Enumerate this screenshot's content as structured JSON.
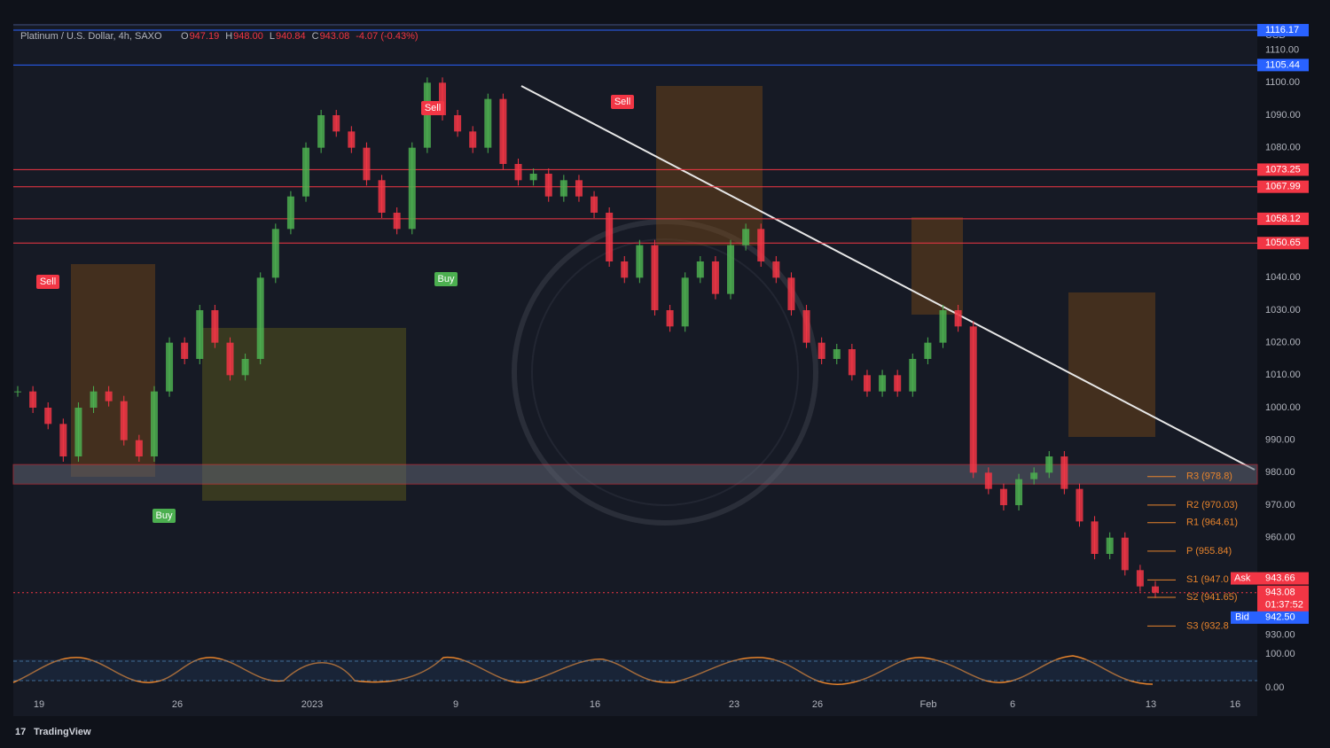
{
  "header": {
    "symbol": "Platinum / U.S. Dollar, 4h, SAXO",
    "ohlc": [
      {
        "key": "O",
        "value": "947.19"
      },
      {
        "key": "H",
        "value": "948.00"
      },
      {
        "key": "L",
        "value": "940.84"
      },
      {
        "key": "C",
        "value": "943.08"
      }
    ],
    "change": "-4.07 (-0.43%)"
  },
  "price_axis": {
    "currency": "USD",
    "ylim": [
      925,
      1120
    ],
    "ticks": [
      {
        "value": 1110,
        "label": "1110.00"
      },
      {
        "value": 1100,
        "label": "1100.00"
      },
      {
        "value": 1090,
        "label": "1090.00"
      },
      {
        "value": 1080,
        "label": "1080.00"
      },
      {
        "value": 1040,
        "label": "1040.00"
      },
      {
        "value": 1030,
        "label": "1030.00"
      },
      {
        "value": 1020,
        "label": "1020.00"
      },
      {
        "value": 1010,
        "label": "1010.00"
      },
      {
        "value": 1000,
        "label": "1000.00"
      },
      {
        "value": 990,
        "label": "990.00"
      },
      {
        "value": 980,
        "label": "980.00"
      },
      {
        "value": 970,
        "label": "970.00"
      },
      {
        "value": 960,
        "label": "960.00"
      },
      {
        "value": 930,
        "label": "930.00"
      }
    ]
  },
  "levels": [
    {
      "value": 1116.17,
      "label": "1116.17",
      "color": "#2962ff"
    },
    {
      "value": 1105.44,
      "label": "1105.44",
      "color": "#2962ff"
    },
    {
      "value": 1073.25,
      "label": "1073.25",
      "color": "#f23645"
    },
    {
      "value": 1067.99,
      "label": "1067.99",
      "color": "#f23645"
    },
    {
      "value": 1058.12,
      "label": "1058.12",
      "color": "#f23645"
    },
    {
      "value": 1050.65,
      "label": "1050.65",
      "color": "#f23645"
    }
  ],
  "quote": {
    "ask_label": "Ask",
    "ask": {
      "value": 943.66,
      "label": "943.66"
    },
    "last": {
      "value": 943.08,
      "label": "943.08"
    },
    "countdown": "01:37:52",
    "bid_label": "Bid",
    "bid": {
      "value": 942.5,
      "label": "942.50"
    }
  },
  "pivots": [
    {
      "value": 978.8,
      "label": "R3 (978.8)"
    },
    {
      "value": 970.03,
      "label": "R2 (970.03)"
    },
    {
      "value": 964.61,
      "label": "R1 (964.61)"
    },
    {
      "value": 955.84,
      "label": "P (955.84)"
    },
    {
      "value": 947.0,
      "label": "S1 (947.0"
    },
    {
      "value": 941.65,
      "label": "S2 (941.65)"
    },
    {
      "value": 932.8,
      "label": "S3 (932.8"
    }
  ],
  "candles": {
    "up_color": "#4caf50",
    "down_color": "#f23645",
    "closes": [
      1005,
      1000,
      995,
      985,
      1000,
      1005,
      1002,
      990,
      985,
      1005,
      1020,
      1015,
      1030,
      1020,
      1010,
      1015,
      1040,
      1055,
      1065,
      1080,
      1090,
      1085,
      1080,
      1070,
      1060,
      1055,
      1080,
      1100,
      1090,
      1085,
      1080,
      1095,
      1075,
      1070,
      1072,
      1065,
      1070,
      1065,
      1060,
      1045,
      1040,
      1050,
      1030,
      1025,
      1040,
      1045,
      1035,
      1050,
      1055,
      1045,
      1040,
      1030,
      1020,
      1015,
      1018,
      1010,
      1005,
      1010,
      1005,
      1015,
      1020,
      1030,
      1025,
      980,
      975,
      970,
      978,
      980,
      985,
      975,
      965,
      955,
      960,
      950,
      945,
      943.08
    ]
  },
  "signals": [
    "Sell",
    "Sell",
    "Sell",
    "Buy",
    "Buy"
  ],
  "oscillator_axis": {
    "ylim": [
      0,
      100
    ],
    "ticks": [
      {
        "value": 100,
        "label": "100.00"
      },
      {
        "value": 0,
        "label": "0.00"
      }
    ]
  },
  "dates": [
    "19",
    "26",
    "2023",
    "9",
    "16",
    "23",
    "26",
    "Feb",
    "6",
    "13",
    "16"
  ],
  "brand": "TradingView"
}
